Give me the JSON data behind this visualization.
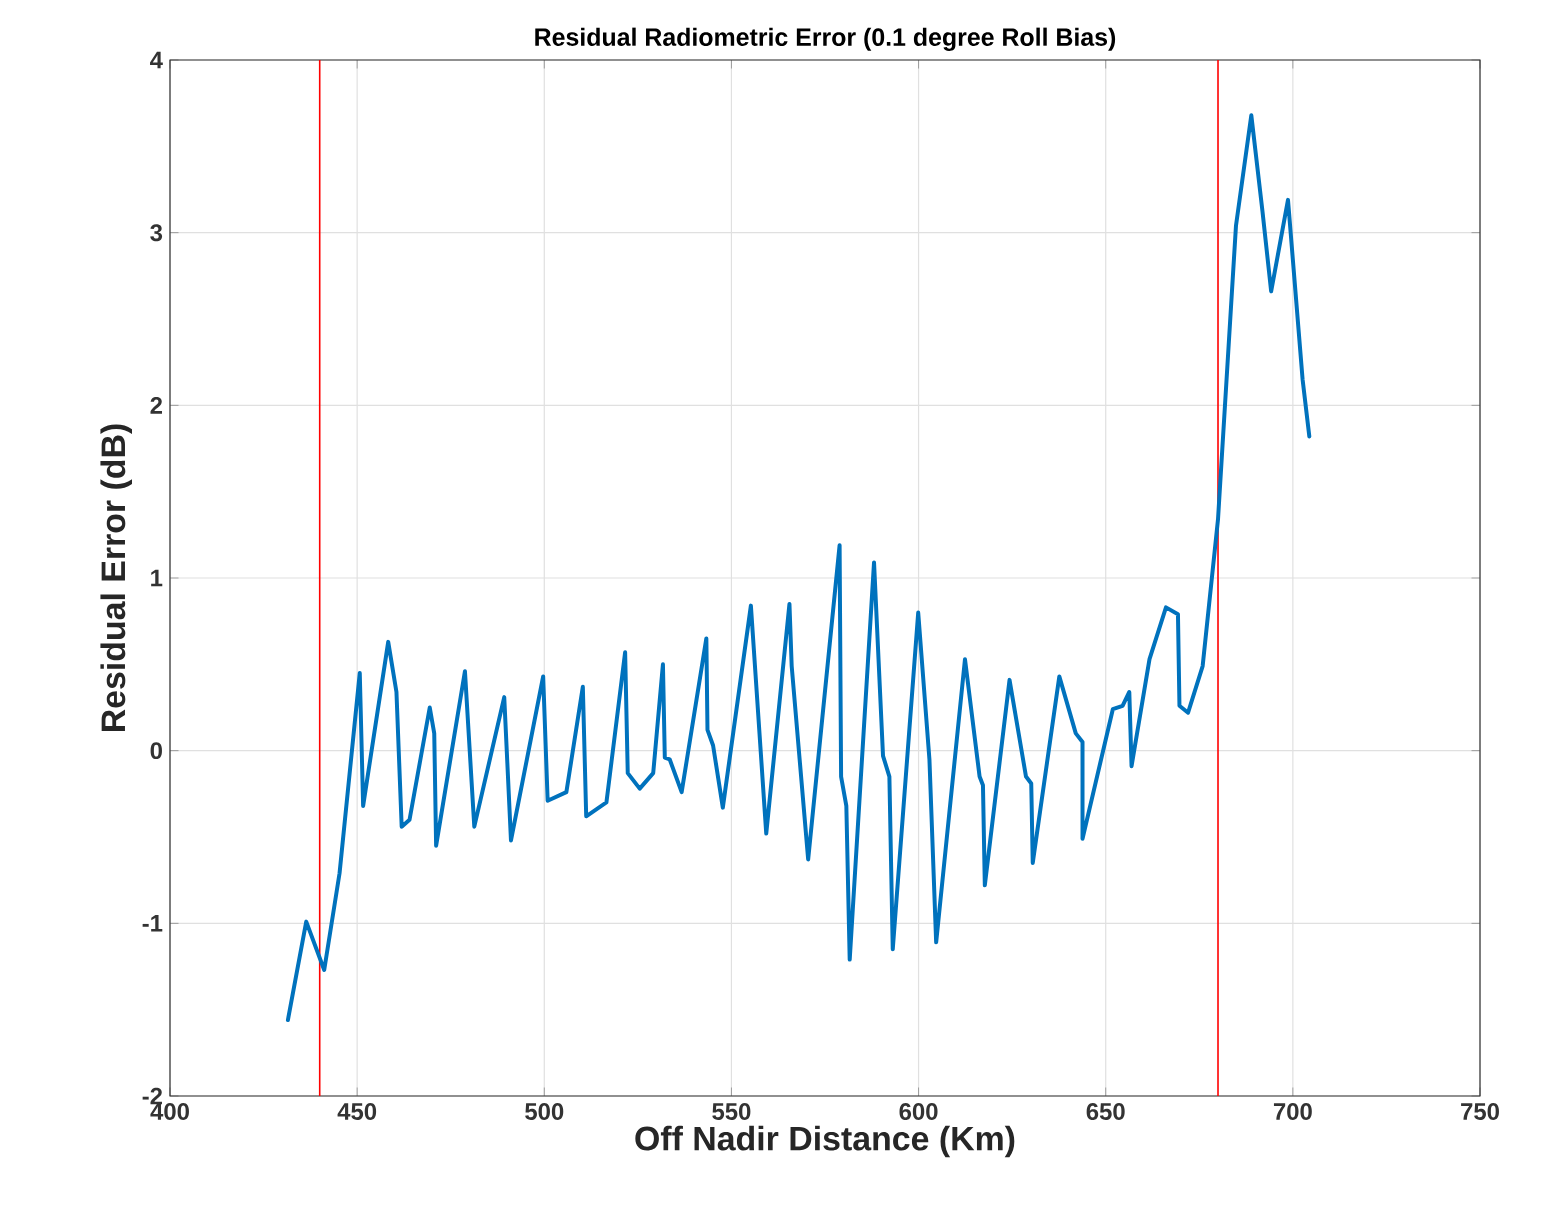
{
  "chart_data": {
    "type": "line",
    "title": "Residual Radiometric Error (0.1 degree Roll Bias)",
    "xlabel": "Off Nadir Distance (Km)",
    "ylabel": "Residual Error (dB)",
    "xlim": [
      400,
      750
    ],
    "xticks": [
      400,
      450,
      500,
      550,
      600,
      650,
      700,
      750
    ],
    "ylim": [
      -2,
      4
    ],
    "yticks": [
      -2,
      -1,
      0,
      1,
      2,
      3,
      4
    ],
    "grid": true,
    "line_style": "solid",
    "ref_lines": [
      {
        "axis": "x",
        "value": 440,
        "color": "#ff0000"
      },
      {
        "axis": "x",
        "value": 680,
        "color": "#ff0000"
      }
    ],
    "series": [
      {
        "color": "#0072bd",
        "x": [
          431.5,
          436.4,
          441.2,
          445.3,
          450.7,
          451.6,
          458.3,
          460.5,
          461.9,
          464.0,
          469.4,
          470.6,
          471.1,
          478.8,
          481.3,
          489.3,
          491.1,
          499.7,
          500.9,
          505.9,
          510.3,
          511.2,
          516.6,
          521.6,
          522.3,
          525.5,
          529.1,
          531.7,
          532.2,
          533.5,
          536.7,
          543.3,
          543.6,
          545.1,
          547.7,
          555.2,
          559.3,
          565.5,
          566.1,
          570.5,
          578.9,
          579.3,
          580.7,
          581.6,
          588.1,
          590.5,
          592.2,
          593.1,
          599.9,
          602.9,
          604.7,
          612.4,
          616.3,
          617.2,
          617.7,
          624.3,
          628.7,
          630.1,
          630.5,
          637.6,
          642.0,
          643.8,
          643.8,
          651.9,
          654.5,
          656.3,
          656.9,
          661.7,
          666.1,
          669.3,
          669.7,
          672.0,
          675.9,
          680.0,
          684.8,
          688.9,
          691.9,
          694.2,
          698.7,
          702.6,
          704.4
        ],
        "values": [
          -1.56,
          -0.99,
          -1.27,
          -0.71,
          0.45,
          -0.32,
          0.63,
          0.34,
          -0.44,
          -0.4,
          0.25,
          0.1,
          -0.55,
          0.46,
          -0.44,
          0.31,
          -0.52,
          0.43,
          -0.29,
          -0.24,
          0.37,
          -0.38,
          -0.3,
          0.57,
          -0.13,
          -0.22,
          -0.13,
          0.5,
          -0.04,
          -0.05,
          -0.24,
          0.65,
          0.12,
          0.03,
          -0.33,
          0.84,
          -0.48,
          0.85,
          0.49,
          -0.63,
          1.19,
          -0.15,
          -0.32,
          -1.21,
          1.09,
          -0.03,
          -0.15,
          -1.15,
          0.8,
          -0.05,
          -1.11,
          0.53,
          -0.15,
          -0.2,
          -0.78,
          0.41,
          -0.15,
          -0.19,
          -0.65,
          0.43,
          0.1,
          0.05,
          -0.51,
          0.24,
          0.26,
          0.34,
          -0.09,
          0.53,
          0.83,
          0.79,
          0.26,
          0.22,
          0.49,
          1.34,
          3.04,
          3.68,
          3.12,
          2.66,
          3.19,
          2.15,
          1.82
        ]
      }
    ]
  }
}
